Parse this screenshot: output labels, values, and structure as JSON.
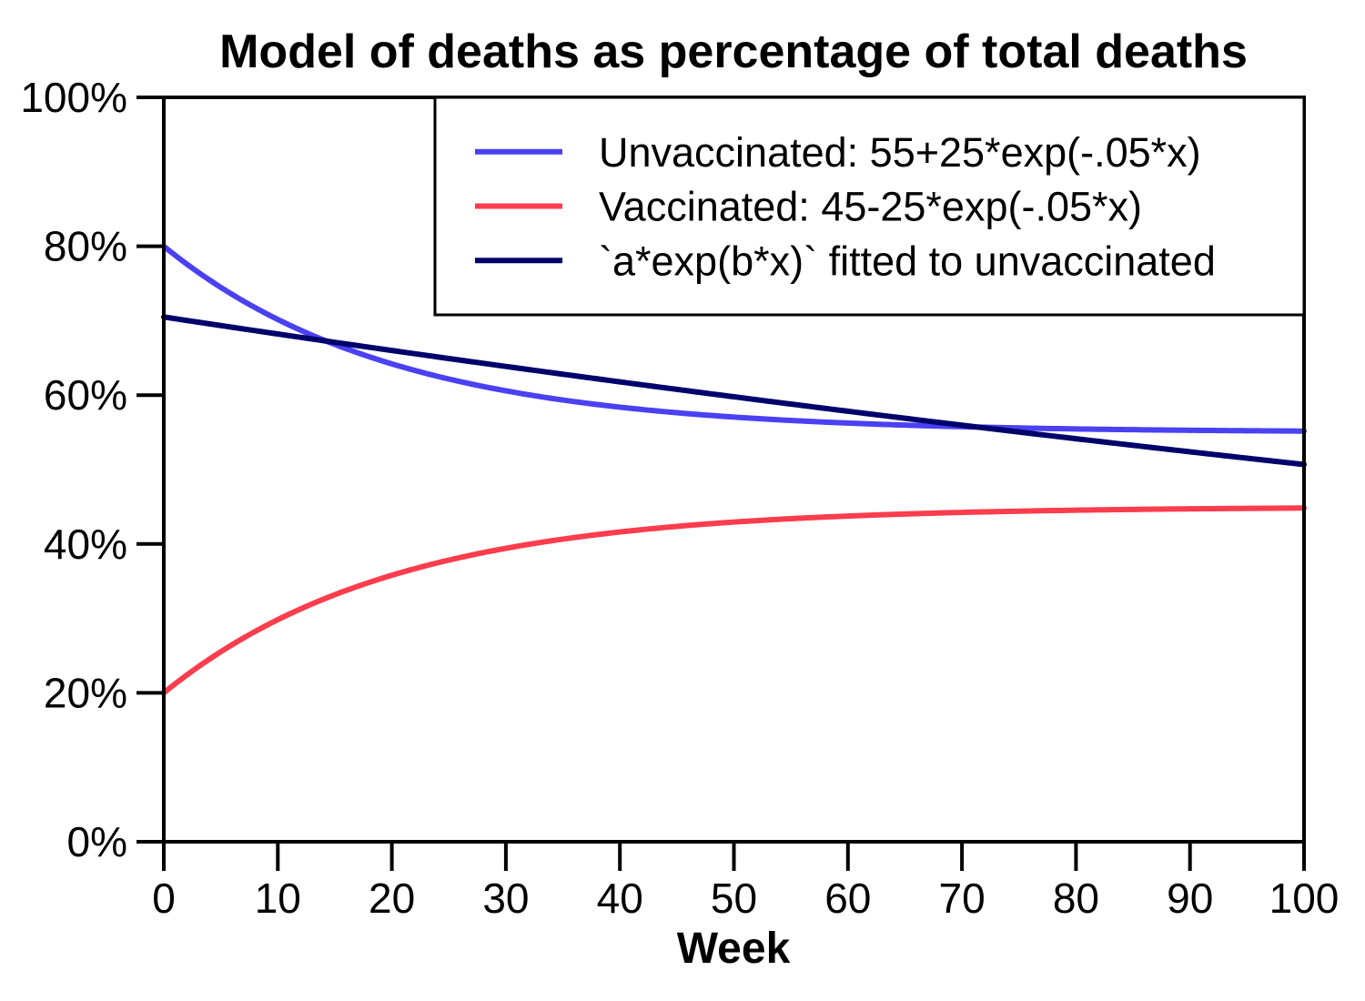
{
  "chart_data": {
    "type": "line",
    "title": "Model of deaths as percentage of total deaths",
    "xlabel": "Week",
    "ylabel": "",
    "xlim": [
      0,
      100
    ],
    "ylim": [
      0,
      100
    ],
    "grid": false,
    "legend_position": "top-right-inside",
    "background_color": "#ffffff",
    "axis_color": "#000000",
    "x_ticks": {
      "values": [
        0,
        10,
        20,
        30,
        40,
        50,
        60,
        70,
        80,
        90,
        100
      ],
      "labels": [
        "0",
        "10",
        "20",
        "30",
        "40",
        "50",
        "60",
        "70",
        "80",
        "90",
        "100"
      ]
    },
    "y_ticks": {
      "values": [
        0,
        20,
        40,
        60,
        80,
        100
      ],
      "labels": [
        "0%",
        "20%",
        "40%",
        "60%",
        "80%",
        "100%"
      ]
    },
    "series": [
      {
        "name": "unvaccinated",
        "label": "Unvaccinated: 55+25*exp(-.05*x)",
        "formula": "y = 55 + 25*exp(-0.05*x)",
        "color": "#4a41f2",
        "params": {
          "c": 55,
          "a": 25,
          "b": -0.05
        },
        "x_at_ticks": [
          0,
          10,
          20,
          30,
          40,
          50,
          60,
          70,
          80,
          90,
          100
        ],
        "values_at_ticks": [
          80.0,
          70.2,
          64.2,
          60.6,
          58.4,
          57.1,
          56.2,
          55.8,
          55.5,
          55.3,
          55.2
        ]
      },
      {
        "name": "vaccinated",
        "label": "Vaccinated: 45-25*exp(-.05*x)",
        "formula": "y = 45 - 25*exp(-0.05*x)",
        "color": "#fb3d4d",
        "params": {
          "c": 45,
          "a": -25,
          "b": -0.05
        },
        "x_at_ticks": [
          0,
          10,
          20,
          30,
          40,
          50,
          60,
          70,
          80,
          90,
          100
        ],
        "values_at_ticks": [
          20.0,
          29.8,
          35.8,
          39.4,
          41.6,
          42.9,
          43.8,
          44.2,
          44.5,
          44.7,
          44.8
        ]
      },
      {
        "name": "fitted-exponential",
        "label": "`a*exp(b*x)` fitted to unvaccinated",
        "formula": "y = 70.5*exp(-0.0033*x)",
        "color": "#00026b",
        "params": {
          "c": 0,
          "a": 70.5,
          "b": -0.0033
        },
        "x_at_ticks": [
          0,
          10,
          20,
          30,
          40,
          50,
          60,
          70,
          80,
          90,
          100
        ],
        "values_at_ticks": [
          70.5,
          68.2,
          66.0,
          63.9,
          61.8,
          59.8,
          57.8,
          56.0,
          54.2,
          52.4,
          50.7
        ]
      }
    ]
  }
}
